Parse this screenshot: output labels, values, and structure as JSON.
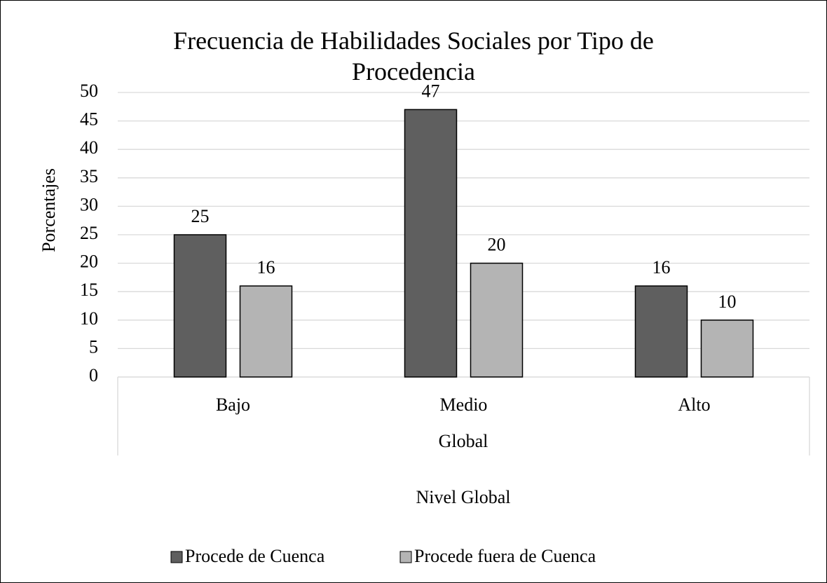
{
  "chart_data": {
    "type": "bar",
    "title": "Frecuencia de Habilidades Sociales por Tipo de Procedencia",
    "categories": [
      "Bajo",
      "Medio",
      "Alto"
    ],
    "group_label": "Global",
    "x_label": "Nivel Global",
    "y_label": "Porcentajes",
    "series": [
      {
        "name": "Procede de Cuenca",
        "color": "#5f5f5f",
        "values": [
          25,
          47,
          16
        ]
      },
      {
        "name": "Procede fuera de Cuenca",
        "color": "#b4b4b4",
        "values": [
          16,
          20,
          10
        ]
      }
    ],
    "ylim": [
      0,
      50
    ],
    "yticks": [
      0,
      5,
      10,
      15,
      20,
      25,
      30,
      35,
      40,
      45,
      50
    ],
    "grid": true,
    "legend": "bottom"
  }
}
